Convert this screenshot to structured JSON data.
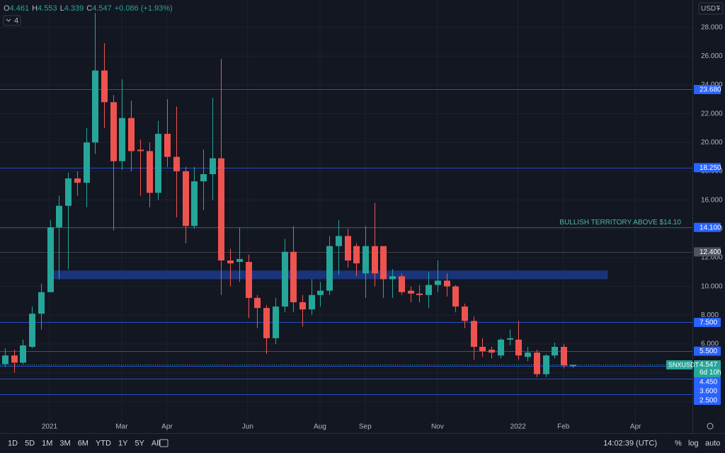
{
  "chart_data": {
    "type": "candlestick",
    "legend": [
      {
        "key": "O",
        "value": "4.461"
      },
      {
        "key": "H",
        "value": "4.553"
      },
      {
        "key": "L",
        "value": "4.339"
      },
      {
        "key": "C",
        "value": "4.547"
      }
    ],
    "change": "+0.086 (+1.93%)",
    "indicator_count": "4",
    "currency": "USDT",
    "up_color": "#26a69a",
    "down_color": "#ef5350",
    "open": [
      4.6,
      5.2,
      4.7,
      5.8,
      8.1,
      9.6,
      14.1,
      15.6,
      17.5,
      17.2,
      20.0,
      25.0,
      22.8,
      18.7,
      21.7,
      19.5,
      19.4,
      16.5,
      20.6,
      19.0,
      18.0,
      14.2,
      17.3,
      17.8,
      18.9,
      11.8,
      11.7,
      11.7,
      9.2,
      8.5,
      6.4,
      8.6,
      12.4,
      8.9,
      8.4,
      9.4,
      9.7,
      12.8,
      13.5,
      12.8,
      10.9,
      12.8,
      12.8,
      10.5,
      10.7,
      9.7,
      9.5,
      9.4,
      10.1,
      10.4,
      10.0,
      8.6,
      7.6,
      5.8,
      5.6,
      5.2,
      6.3,
      6.3,
      5.1,
      5.4,
      3.9,
      5.2,
      5.8,
      4.461
    ],
    "high": [
      5.7,
      5.6,
      6.3,
      8.6,
      10.2,
      14.6,
      16.3,
      17.9,
      18.0,
      21.0,
      29.0,
      26.9,
      23.3,
      24.4,
      22.9,
      20.2,
      20.0,
      21.5,
      23.0,
      22.5,
      18.3,
      18.3,
      19.5,
      23.1,
      25.8,
      12.6,
      14.1,
      12.2,
      9.4,
      8.7,
      9.2,
      13.3,
      14.2,
      9.4,
      10.5,
      10.3,
      13.5,
      14.6,
      14.0,
      13.0,
      14.2,
      15.8,
      12.8,
      11.2,
      10.9,
      10.0,
      10.1,
      11.0,
      11.8,
      10.9,
      10.1,
      8.8,
      7.9,
      6.4,
      5.8,
      6.4,
      7.0,
      7.6,
      5.8,
      5.6,
      5.3,
      6.1,
      6.0,
      4.553
    ],
    "low": [
      4.4,
      4.0,
      4.6,
      5.7,
      7.0,
      9.6,
      10.5,
      11.2,
      16.3,
      15.5,
      19.2,
      21.0,
      13.9,
      18.1,
      18.0,
      16.3,
      15.5,
      16.0,
      18.3,
      14.8,
      13.0,
      14.0,
      15.3,
      16.0,
      9.4,
      10.0,
      10.3,
      7.8,
      7.1,
      5.3,
      6.0,
      8.2,
      8.2,
      7.2,
      8.0,
      8.6,
      9.4,
      10.8,
      11.3,
      10.7,
      9.2,
      10.0,
      9.2,
      9.2,
      9.4,
      8.9,
      8.9,
      8.5,
      9.6,
      9.3,
      8.2,
      7.1,
      4.9,
      5.1,
      5.0,
      5.0,
      5.9,
      4.9,
      4.8,
      3.7,
      3.7,
      5.0,
      4.3,
      4.339
    ],
    "close": [
      5.2,
      4.7,
      5.9,
      8.1,
      9.6,
      14.1,
      15.6,
      17.5,
      17.2,
      20.0,
      25.0,
      22.8,
      18.7,
      21.7,
      19.4,
      19.4,
      16.5,
      20.6,
      19.0,
      18.0,
      14.2,
      17.3,
      17.8,
      18.9,
      11.8,
      11.6,
      11.9,
      9.2,
      8.5,
      6.4,
      8.6,
      12.4,
      8.9,
      8.4,
      9.4,
      9.7,
      12.8,
      13.5,
      11.8,
      11.6,
      12.8,
      10.9,
      10.5,
      10.7,
      9.6,
      9.5,
      9.4,
      10.1,
      10.4,
      10.0,
      8.6,
      7.6,
      5.8,
      5.5,
      5.4,
      6.3,
      6.4,
      5.2,
      5.4,
      3.9,
      5.2,
      5.8,
      4.5,
      4.547
    ],
    "xlim": [
      -0.55,
      76.3
    ],
    "xticks": [
      {
        "value": 4.95,
        "label": "2021"
      },
      {
        "value": 12.96,
        "label": "Mar"
      },
      {
        "value": 17.99,
        "label": "Apr"
      },
      {
        "value": 26.94,
        "label": "Jun"
      },
      {
        "value": 34.96,
        "label": "Aug"
      },
      {
        "value": 39.98,
        "label": "Sep"
      },
      {
        "value": 48.0,
        "label": "Nov"
      },
      {
        "value": 56.95,
        "label": "2022"
      },
      {
        "value": 61.98,
        "label": "Feb"
      },
      {
        "value": 69.99,
        "label": "Apr"
      }
    ],
    "ylim": [
      -0.2,
      29.9
    ],
    "yticks": [
      {
        "value": 2,
        "label": "2.000"
      },
      {
        "value": 4,
        "label": "4.000"
      },
      {
        "value": 6,
        "label": "6.000"
      },
      {
        "value": 8,
        "label": "8.000"
      },
      {
        "value": 10,
        "label": "10.000"
      },
      {
        "value": 12,
        "label": "12.000"
      },
      {
        "value": 14,
        "label": "14.000"
      },
      {
        "value": 16,
        "label": "16.000"
      },
      {
        "value": 18,
        "label": "18.000"
      },
      {
        "value": 20,
        "label": "20.000"
      },
      {
        "value": 22,
        "label": "22.000"
      },
      {
        "value": 24,
        "label": "24.000"
      },
      {
        "value": 26,
        "label": "26.000"
      },
      {
        "value": 28,
        "label": "28.000"
      }
    ],
    "grid": true,
    "levels": [
      {
        "value": 23.68,
        "label": "23.680",
        "color": "#2962ff"
      },
      {
        "value": 18.25,
        "label": "18.250",
        "color": "#2962ff"
      },
      {
        "value": 14.1,
        "label": "14.100",
        "color": "#2962ff"
      },
      {
        "value": 12.4,
        "label": "12.400",
        "color": "#50535e"
      },
      {
        "value": 7.5,
        "label": "7.500",
        "color": "#2962ff"
      },
      {
        "value": 5.5,
        "label": "5.500",
        "color": "#2962ff"
      },
      {
        "value": 4.45,
        "label": "4.450",
        "color": "#2962ff"
      },
      {
        "value": 3.6,
        "label": "3.600",
        "color": "#2962ff"
      },
      {
        "value": 2.5,
        "label": "2.500",
        "color": "#2962ff"
      }
    ],
    "annotation": "BULLISH TERRITORY ABOVE $14.10",
    "zone": {
      "low": 10.5,
      "high": 11.1,
      "start": 5.4,
      "end": 66.9,
      "color": "#1c3a8a"
    },
    "symbol": "SNXUSDT",
    "last_price": {
      "value": 4.547,
      "label": "4.547"
    },
    "countdown": "6d 10h",
    "ranges": [
      "1D",
      "5D",
      "1M",
      "3M",
      "6M",
      "YTD",
      "1Y",
      "5Y",
      "All"
    ],
    "clock": "14:02:39 (UTC)",
    "scale_buttons": [
      "%",
      "log",
      "auto"
    ]
  }
}
